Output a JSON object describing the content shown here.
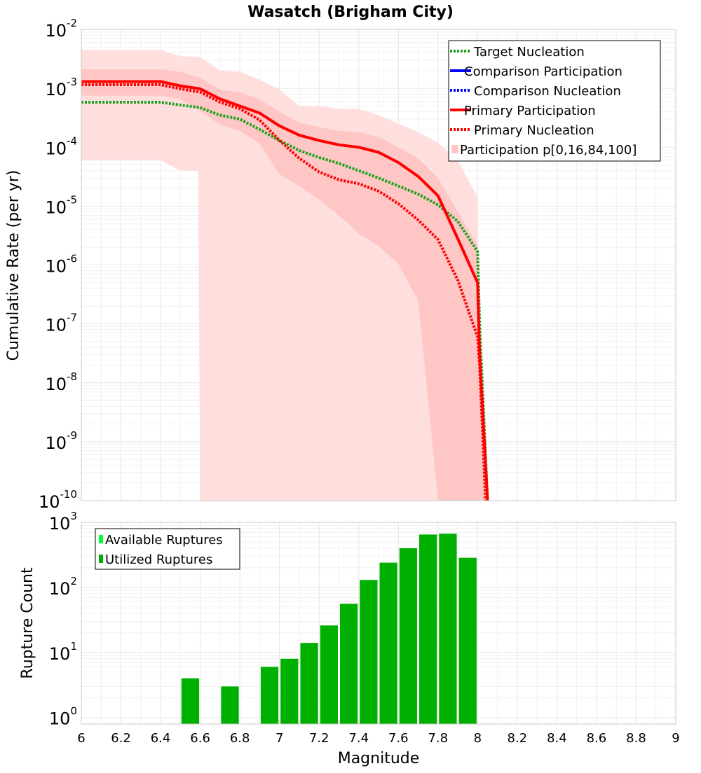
{
  "title": "Wasatch (Brigham City)",
  "colors": {
    "target": "#1aa31a",
    "comparison": "#0000ff",
    "primary": "#ff0000",
    "band_outer": "#ffdede",
    "band_inner": "#ffc6c6",
    "bars_utilized": "#00b000",
    "bars_available": "#00ff33"
  },
  "chart_data": [
    {
      "type": "line",
      "title": "Wasatch (Brigham City)",
      "xlabel": "Magnitude",
      "ylabel": "Cumulative Rate (per yr)",
      "xlim": [
        6,
        9
      ],
      "ylim_log10": [
        -10,
        -2
      ],
      "yscale": "log",
      "grid": true,
      "legend_position": "top-right",
      "y_tick_exponents": [
        -2,
        -3,
        -4,
        -5,
        -6,
        -7,
        -8,
        -9,
        -10
      ],
      "y_tick_base": "10",
      "y_tick_labels": [
        "-2",
        "-3",
        "-4",
        "-5",
        "-6",
        "-7",
        "-8",
        "-9",
        "-10"
      ],
      "legend": [
        {
          "label": "Target Nucleation",
          "style": "dotted",
          "color": "#1aa31a"
        },
        {
          "label": "Comparison Participation",
          "style": "solid",
          "color": "#0000ff"
        },
        {
          "label": "Comparison Nucleation",
          "style": "dotted",
          "color": "#0000ff"
        },
        {
          "label": "Primary Participation",
          "style": "solid",
          "color": "#ff0000"
        },
        {
          "label": "Primary Nucleation",
          "style": "dotted",
          "color": "#ff0000"
        },
        {
          "label": "Participation p[0,16,84,100]",
          "style": "band",
          "color": "#ffc6c6"
        }
      ],
      "series": [
        {
          "name": "Target Nucleation",
          "style": "dotted",
          "color": "#1aa31a",
          "x": [
            6.0,
            6.1,
            6.2,
            6.3,
            6.4,
            6.5,
            6.6,
            6.7,
            6.8,
            6.9,
            7.0,
            7.1,
            7.2,
            7.3,
            7.4,
            7.5,
            7.6,
            7.7,
            7.8,
            7.9,
            8.0,
            8.01,
            8.05
          ],
          "y": [
            0.00058,
            0.00058,
            0.00058,
            0.00058,
            0.00058,
            0.00052,
            0.00047,
            0.00035,
            0.0003,
            0.0002,
            0.00013,
            8.8e-05,
            6.7e-05,
            5.3e-05,
            4e-05,
            3e-05,
            2.2e-05,
            1.6e-05,
            1.05e-05,
            5.5e-06,
            1.7e-06,
            1e-07,
            1e-10
          ]
        },
        {
          "name": "Primary Participation",
          "style": "solid",
          "color": "#ff0000",
          "x": [
            6.0,
            6.1,
            6.2,
            6.3,
            6.4,
            6.5,
            6.6,
            6.7,
            6.8,
            6.9,
            7.0,
            7.1,
            7.2,
            7.3,
            7.4,
            7.5,
            7.6,
            7.7,
            7.8,
            7.9,
            8.0,
            8.01,
            8.05
          ],
          "y": [
            0.0013,
            0.0013,
            0.0013,
            0.0013,
            0.0013,
            0.0011,
            0.00098,
            0.00066,
            0.0005,
            0.00038,
            0.00023,
            0.00016,
            0.00013,
            0.00011,
            0.0001,
            8.2e-05,
            5.5e-05,
            3.2e-05,
            1.5e-05,
            2.8e-06,
            5e-07,
            3e-08,
            1e-10
          ]
        },
        {
          "name": "Primary Nucleation",
          "style": "dotted",
          "color": "#ff0000",
          "x": [
            6.0,
            6.1,
            6.2,
            6.3,
            6.4,
            6.5,
            6.6,
            6.7,
            6.8,
            6.9,
            7.0,
            7.1,
            7.2,
            7.3,
            7.4,
            7.5,
            7.6,
            7.7,
            7.8,
            7.9,
            8.0,
            8.01,
            8.04
          ],
          "y": [
            0.00115,
            0.00115,
            0.00115,
            0.00115,
            0.00115,
            0.00098,
            0.00086,
            0.00058,
            0.00045,
            0.00029,
            0.00013,
            6.5e-05,
            3.8e-05,
            2.8e-05,
            2.4e-05,
            1.8e-05,
            1.1e-05,
            5.8e-06,
            2.7e-06,
            5.5e-07,
            6e-08,
            2e-08,
            1e-10
          ]
        }
      ],
      "bands": [
        {
          "name": "p0-p100",
          "color": "#ffdede",
          "x": [
            6.0,
            6.1,
            6.2,
            6.3,
            6.4,
            6.5,
            6.6,
            6.7,
            6.8,
            6.9,
            7.0,
            7.1,
            7.2,
            7.3,
            7.4,
            7.5,
            7.6,
            7.7,
            7.8,
            7.9,
            8.0,
            8.01,
            8.05
          ],
          "upper": [
            0.0045,
            0.0045,
            0.0045,
            0.0045,
            0.0045,
            0.0035,
            0.0034,
            0.002,
            0.0019,
            0.0014,
            0.00095,
            0.0005,
            0.0005,
            0.00045,
            0.00045,
            0.00035,
            0.00025,
            0.00018,
            0.00012,
            6e-05,
            1.4e-05,
            5e-08,
            1e-10
          ],
          "lower": [
            6e-05,
            6e-05,
            6e-05,
            6e-05,
            6e-05,
            4e-05,
            1e-10,
            1e-10,
            1e-10,
            1e-10,
            1e-10,
            1e-10,
            1e-10,
            1e-10,
            1e-10,
            1e-10,
            1e-10,
            1e-10,
            1e-10,
            1e-10,
            1e-10,
            1e-10,
            1e-10
          ],
          "lower_x": [
            6.0,
            6.1,
            6.2,
            6.3,
            6.4,
            6.5,
            6.59,
            6.6,
            6.62,
            9.0
          ]
        },
        {
          "name": "p16-p84",
          "color": "#ffc6c6",
          "x": [
            6.0,
            6.1,
            6.2,
            6.3,
            6.4,
            6.5,
            6.6,
            6.7,
            6.8,
            6.9,
            7.0,
            7.1,
            7.2,
            7.3,
            7.4,
            7.5,
            7.6,
            7.7,
            7.8,
            7.9,
            8.0,
            8.01,
            8.05
          ],
          "upper": [
            0.0021,
            0.0021,
            0.0021,
            0.0021,
            0.0021,
            0.0019,
            0.0015,
            0.00095,
            0.00085,
            0.00065,
            0.0004,
            0.00026,
            0.00022,
            0.00019,
            0.00018,
            0.00015,
            0.0001,
            6.5e-05,
            3e-05,
            8e-06,
            2.2e-06,
            6e-08,
            1e-10
          ],
          "lower": [
            0.00075,
            0.00075,
            0.00075,
            0.00075,
            0.00075,
            0.00065,
            0.00042,
            0.00024,
            0.00019,
            0.000115,
            3.5e-05,
            2.2e-05,
            1.3e-05,
            7e-06,
            3.4e-06,
            2.1e-06,
            1.05e-06,
            2.5e-07,
            1e-10,
            1e-10,
            1e-10,
            1e-10,
            1e-10
          ]
        }
      ]
    },
    {
      "type": "bar",
      "xlabel": "Magnitude",
      "ylabel": "Rupture Count",
      "xlim": [
        6,
        9
      ],
      "ylim_log10": [
        -0.1,
        3
      ],
      "yscale": "log",
      "grid": true,
      "legend_position": "top-left",
      "y_tick_exponents": [
        3,
        2,
        1,
        0
      ],
      "y_tick_base": "10",
      "y_tick_labels": [
        "3",
        "2",
        "1",
        "0"
      ],
      "x_ticks": [
        6,
        6.2,
        6.4,
        6.6,
        6.8,
        7,
        7.2,
        7.4,
        7.6,
        7.8,
        8,
        8.2,
        8.4,
        8.6,
        8.8,
        9
      ],
      "x_tick_labels": [
        "6",
        "6.2",
        "6.4",
        "6.6",
        "6.8",
        "7",
        "7.2",
        "7.4",
        "7.6",
        "7.8",
        "8",
        "8.2",
        "8.4",
        "8.6",
        "8.8",
        "9"
      ],
      "legend": [
        {
          "label": "Available Ruptures",
          "color": "#00ff33"
        },
        {
          "label": "Utilized Ruptures",
          "color": "#00b000"
        }
      ],
      "bin_width": 0.1,
      "bars": [
        {
          "x": 6.55,
          "value": 4
        },
        {
          "x": 6.75,
          "value": 3
        },
        {
          "x": 6.95,
          "value": 6
        },
        {
          "x": 7.05,
          "value": 8
        },
        {
          "x": 7.15,
          "value": 14
        },
        {
          "x": 7.25,
          "value": 26
        },
        {
          "x": 7.35,
          "value": 56
        },
        {
          "x": 7.45,
          "value": 130
        },
        {
          "x": 7.55,
          "value": 240
        },
        {
          "x": 7.65,
          "value": 400
        },
        {
          "x": 7.75,
          "value": 650
        },
        {
          "x": 7.85,
          "value": 670
        },
        {
          "x": 7.95,
          "value": 285
        }
      ]
    }
  ]
}
